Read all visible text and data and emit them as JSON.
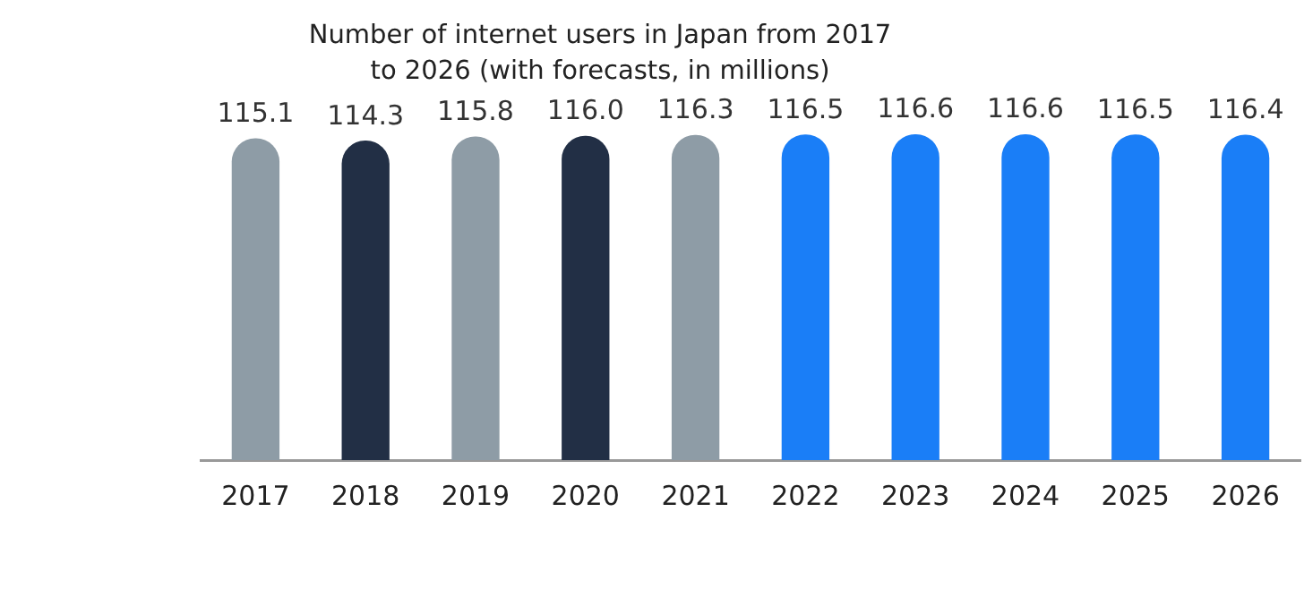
{
  "chart_data": {
    "type": "bar",
    "title": "Number of internet users in Japan from 2017 to 2026 (with forecasts, in millions)",
    "categories": [
      "2017",
      "2018",
      "2019",
      "2020",
      "2021",
      "2022",
      "2023",
      "2024",
      "2025",
      "2026"
    ],
    "values": [
      115.1,
      114.3,
      115.8,
      116.0,
      116.3,
      116.5,
      116.6,
      116.6,
      116.5,
      116.4
    ],
    "colors": [
      "#8e9ca6",
      "#222f45",
      "#8e9ca6",
      "#222f45",
      "#8e9ca6",
      "#1a7ef7",
      "#1a7ef7",
      "#1a7ef7",
      "#1a7ef7",
      "#1a7ef7"
    ],
    "value_labels": [
      "115.1",
      "114.3",
      "115.8",
      "116.0",
      "116.3",
      "116.5",
      "116.6",
      "116.6",
      "116.5",
      "116.4"
    ],
    "grid": false,
    "legend": false
  }
}
